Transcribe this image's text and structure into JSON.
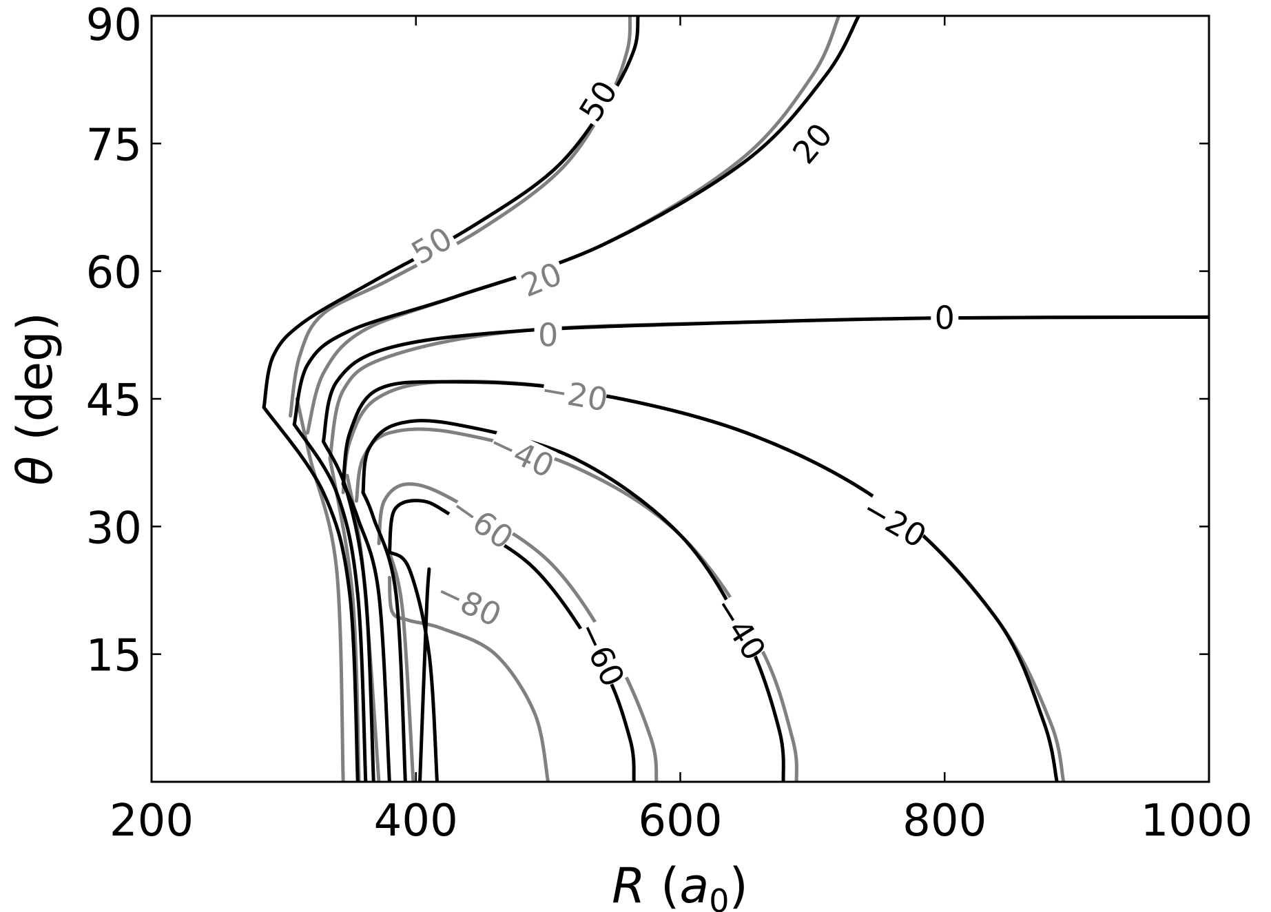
{
  "chart_data": {
    "type": "contour",
    "xlabel_main": "R",
    "xlabel_unit": "a",
    "xlabel_sub": "0",
    "ylabel_main": "θ",
    "ylabel_unit": "(deg)",
    "xlim": [
      200,
      1000
    ],
    "ylim": [
      0,
      90
    ],
    "xticks": [
      200,
      400,
      600,
      800,
      1000
    ],
    "yticks": [
      15,
      30,
      45,
      60,
      75,
      90
    ],
    "colors": {
      "black_set": "#000000",
      "gray_set": "#808080"
    },
    "contours": [
      {
        "set": "gray",
        "level": "50",
        "points": [
          [
            305,
            43
          ],
          [
            312,
            50
          ],
          [
            330,
            55
          ],
          [
            380,
            59
          ],
          [
            450,
            65
          ],
          [
            510,
            72
          ],
          [
            545,
            80
          ],
          [
            560,
            86
          ],
          [
            562,
            90
          ]
        ]
      },
      {
        "set": "black",
        "level": "50",
        "points": [
          [
            285,
            44
          ],
          [
            292,
            50
          ],
          [
            315,
            54
          ],
          [
            370,
            59
          ],
          [
            440,
            65
          ],
          [
            505,
            72
          ],
          [
            545,
            80
          ],
          [
            565,
            86
          ],
          [
            568,
            90
          ]
        ]
      },
      {
        "set": "gray",
        "level": "20",
        "points": [
          [
            318,
            41
          ],
          [
            330,
            48
          ],
          [
            360,
            53
          ],
          [
            430,
            57
          ],
          [
            540,
            63
          ],
          [
            645,
            73
          ],
          [
            700,
            83
          ],
          [
            720,
            90
          ]
        ]
      },
      {
        "set": "black",
        "level": "20",
        "points": [
          [
            308,
            42
          ],
          [
            318,
            49
          ],
          [
            350,
            53
          ],
          [
            430,
            57
          ],
          [
            540,
            63
          ],
          [
            650,
            73
          ],
          [
            710,
            83
          ],
          [
            735,
            90
          ]
        ]
      },
      {
        "set": "gray",
        "level": "0",
        "points": [
          [
            335,
            38
          ],
          [
            345,
            46
          ],
          [
            380,
            50
          ],
          [
            480,
            53
          ],
          [
            650,
            54
          ],
          [
            800,
            54.5
          ],
          [
            1000,
            54.6
          ]
        ]
      },
      {
        "set": "black",
        "level": "0",
        "points": [
          [
            330,
            40
          ],
          [
            340,
            47
          ],
          [
            380,
            51
          ],
          [
            480,
            53
          ],
          [
            650,
            54
          ],
          [
            800,
            54.5
          ],
          [
            1000,
            54.6
          ]
        ]
      },
      {
        "set": "gray",
        "level": "-20",
        "points": [
          [
            345,
            34
          ],
          [
            350,
            40
          ],
          [
            370,
            45
          ],
          [
            420,
            47
          ],
          [
            520,
            46
          ],
          [
            650,
            41
          ],
          [
            760,
            32
          ],
          [
            840,
            19
          ],
          [
            880,
            7
          ],
          [
            890,
            0
          ]
        ]
      },
      {
        "set": "black",
        "level": "-20",
        "points": [
          [
            345,
            35
          ],
          [
            350,
            41
          ],
          [
            370,
            46
          ],
          [
            420,
            47
          ],
          [
            520,
            46
          ],
          [
            650,
            41
          ],
          [
            760,
            32
          ],
          [
            840,
            19
          ],
          [
            875,
            7
          ],
          [
            885,
            0
          ]
        ]
      },
      {
        "set": "gray",
        "level": "-40",
        "points": [
          [
            355,
            33
          ],
          [
            360,
            38
          ],
          [
            380,
            41
          ],
          [
            430,
            41
          ],
          [
            520,
            37
          ],
          [
            600,
            29
          ],
          [
            660,
            16
          ],
          [
            685,
            5
          ],
          [
            688,
            0
          ]
        ]
      },
      {
        "set": "black",
        "level": "-40",
        "points": [
          [
            360,
            34
          ],
          [
            364,
            39
          ],
          [
            385,
            42
          ],
          [
            430,
            42
          ],
          [
            520,
            38
          ],
          [
            600,
            29
          ],
          [
            650,
            17
          ],
          [
            675,
            6
          ],
          [
            678,
            0
          ]
        ]
      },
      {
        "set": "gray",
        "level": "-60",
        "points": [
          [
            372,
            28
          ],
          [
            376,
            33
          ],
          [
            395,
            35
          ],
          [
            430,
            33
          ],
          [
            500,
            26
          ],
          [
            550,
            15
          ],
          [
            578,
            5
          ],
          [
            582,
            0
          ]
        ]
      },
      {
        "set": "black",
        "level": "-60",
        "points": [
          [
            380,
            27
          ],
          [
            384,
            32
          ],
          [
            405,
            33
          ],
          [
            430,
            31
          ],
          [
            490,
            25
          ],
          [
            540,
            14
          ],
          [
            562,
            5
          ],
          [
            565,
            0
          ]
        ]
      },
      {
        "set": "gray",
        "level": "-80",
        "points": [
          [
            380,
            24
          ],
          [
            382,
            20
          ],
          [
            394,
            19
          ],
          [
            420,
            18
          ],
          [
            460,
            15
          ],
          [
            490,
            8
          ],
          [
            500,
            0
          ]
        ]
      },
      {
        "set": "black",
        "level": "-80",
        "points": [
          [
            410,
            25
          ],
          [
            408,
            20
          ],
          [
            403,
            0
          ]
        ]
      },
      {
        "set": "gray",
        "level": "",
        "points": [
          [
            345,
            0
          ],
          [
            340,
            25
          ],
          [
            320,
            38
          ],
          [
            310,
            45
          ]
        ]
      },
      {
        "set": "gray",
        "level": "",
        "points": [
          [
            357,
            0
          ],
          [
            352,
            22
          ],
          [
            335,
            38
          ]
        ]
      },
      {
        "set": "gray",
        "level": "",
        "points": [
          [
            372,
            0
          ],
          [
            360,
            25
          ],
          [
            348,
            36
          ]
        ]
      },
      {
        "set": "gray",
        "level": "",
        "points": [
          [
            398,
            0
          ],
          [
            390,
            20
          ],
          [
            380,
            27
          ]
        ]
      },
      {
        "set": "black",
        "level": "",
        "points": [
          [
            356,
            0
          ],
          [
            350,
            22
          ],
          [
            330,
            34
          ],
          [
            285,
            44
          ]
        ]
      },
      {
        "set": "black",
        "level": "",
        "points": [
          [
            362,
            0
          ],
          [
            356,
            22
          ],
          [
            340,
            34
          ],
          [
            308,
            42
          ]
        ]
      },
      {
        "set": "black",
        "level": "",
        "points": [
          [
            368,
            0
          ],
          [
            362,
            22
          ],
          [
            348,
            34
          ],
          [
            330,
            40
          ]
        ]
      },
      {
        "set": "black",
        "level": "",
        "points": [
          [
            380,
            0
          ],
          [
            372,
            22
          ],
          [
            356,
            31
          ],
          [
            345,
            35
          ]
        ]
      },
      {
        "set": "black",
        "level": "",
        "points": [
          [
            392,
            0
          ],
          [
            385,
            22
          ],
          [
            368,
            31
          ],
          [
            360,
            34
          ]
        ]
      },
      {
        "set": "black",
        "level": "",
        "points": [
          [
            416,
            0
          ],
          [
            410,
            15
          ],
          [
            395,
            25
          ],
          [
            380,
            27
          ]
        ]
      }
    ],
    "labels": [
      {
        "text": "50",
        "set": "black",
        "x": 538,
        "y": 80,
        "angle": -58
      },
      {
        "text": "50",
        "set": "gray",
        "x": 412,
        "y": 63,
        "angle": -30
      },
      {
        "text": "20",
        "set": "black",
        "x": 700,
        "y": 75,
        "angle": -50
      },
      {
        "text": "20",
        "set": "gray",
        "x": 495,
        "y": 59,
        "angle": -22
      },
      {
        "text": "0",
        "set": "black",
        "x": 800,
        "y": 54.5,
        "angle": 0
      },
      {
        "text": "0",
        "set": "gray",
        "x": 500,
        "y": 52.5,
        "angle": 0
      },
      {
        "text": "−20",
        "set": "gray",
        "x": 520,
        "y": 45.5,
        "angle": 10
      },
      {
        "text": "−20",
        "set": "black",
        "x": 762,
        "y": 30.5,
        "angle": 30
      },
      {
        "text": "−40",
        "set": "gray",
        "x": 480,
        "y": 38.5,
        "angle": 25
      },
      {
        "text": "−40",
        "set": "black",
        "x": 645,
        "y": 18,
        "angle": 58
      },
      {
        "text": "−60",
        "set": "gray",
        "x": 450,
        "y": 30.5,
        "angle": 35
      },
      {
        "text": "−60",
        "set": "black",
        "x": 540,
        "y": 15,
        "angle": 65
      },
      {
        "text": "−80",
        "set": "gray",
        "x": 440,
        "y": 21,
        "angle": 25
      }
    ]
  }
}
